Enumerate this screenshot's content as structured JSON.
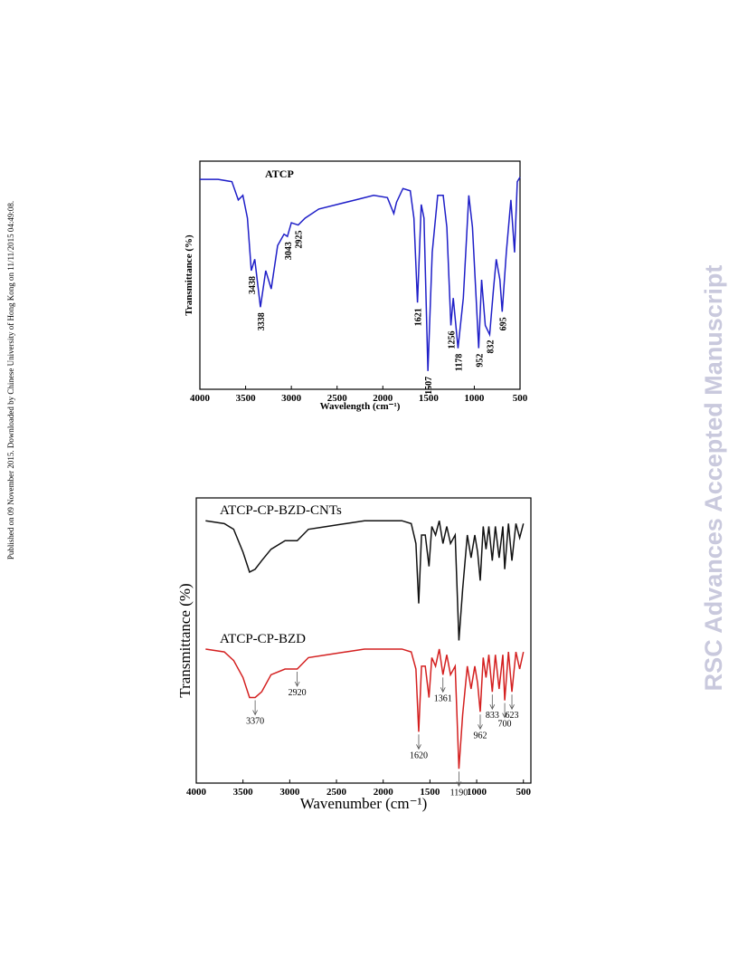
{
  "side_note": "Published on 09 November 2015. Downloaded by Chinese University of Hong Kong on 11/11/2015 04:49:08.",
  "watermark": "RSC Advances Accepted Manuscript",
  "chart_data": [
    {
      "type": "line",
      "title": "ATCP",
      "xlabel": "Wavelength (cm⁻¹)",
      "ylabel": "Transmittance (%)",
      "xlim": [
        4000,
        500
      ],
      "xticks": [
        4000,
        3500,
        3000,
        2500,
        2000,
        1500,
        1000,
        500
      ],
      "ylim": [
        0,
        100
      ],
      "x": [
        4000,
        3800,
        3650,
        3580,
        3530,
        3480,
        3438,
        3400,
        3338,
        3280,
        3220,
        3150,
        3080,
        3043,
        3000,
        2925,
        2850,
        2700,
        2500,
        2300,
        2100,
        1950,
        1880,
        1850,
        1780,
        1700,
        1660,
        1621,
        1580,
        1550,
        1507,
        1460,
        1400,
        1340,
        1300,
        1256,
        1230,
        1178,
        1120,
        1060,
        1020,
        980,
        952,
        920,
        880,
        832,
        790,
        760,
        720,
        695,
        650,
        600,
        560,
        530,
        500
      ],
      "series": [
        {
          "name": "ATCP",
          "color": "#1f1fc8",
          "values": [
            92,
            92,
            91,
            83,
            85,
            75,
            52,
            57,
            36,
            52,
            44,
            63,
            68,
            67,
            73,
            72,
            75,
            79,
            81,
            83,
            85,
            84,
            77,
            82,
            88,
            87,
            75,
            38,
            81,
            75,
            8,
            60,
            85,
            85,
            71,
            28,
            40,
            18,
            40,
            85,
            71,
            40,
            18,
            48,
            28,
            24,
            44,
            57,
            48,
            34,
            60,
            83,
            60,
            91,
            93
          ]
        }
      ],
      "annotations": [
        3438,
        3338,
        3043,
        2925,
        1621,
        1507,
        1256,
        1178,
        952,
        832,
        695
      ]
    },
    {
      "type": "line",
      "xlabel": "Wavenumber (cm⁻¹)",
      "ylabel": "Transmittance (%)",
      "xlim": [
        4000,
        420
      ],
      "xticks": [
        4000,
        3500,
        3000,
        2500,
        2000,
        1500,
        1000,
        500
      ],
      "ylim": [
        0,
        100
      ],
      "x": [
        3900,
        3700,
        3600,
        3500,
        3430,
        3370,
        3300,
        3200,
        3050,
        2920,
        2800,
        2600,
        2400,
        2200,
        2000,
        1800,
        1700,
        1650,
        1620,
        1590,
        1550,
        1510,
        1480,
        1440,
        1400,
        1361,
        1320,
        1280,
        1230,
        1190,
        1150,
        1100,
        1060,
        1020,
        990,
        962,
        930,
        900,
        870,
        833,
        800,
        760,
        720,
        700,
        660,
        623,
        580,
        540,
        500
      ],
      "series": [
        {
          "name": "ATCP-CP-BZD-CNTs",
          "color": "#111111",
          "values": [
            92,
            91,
            89,
            81,
            74,
            75,
            78,
            82,
            85,
            85,
            89,
            90,
            91,
            92,
            92,
            92,
            91,
            84,
            63,
            87,
            87,
            76,
            90,
            87,
            92,
            84,
            90,
            84,
            87,
            50,
            68,
            87,
            79,
            87,
            81,
            71,
            90,
            82,
            90,
            78,
            90,
            79,
            90,
            75,
            91,
            78,
            91,
            86,
            91
          ]
        },
        {
          "name": "ATCP-CP-BZD",
          "color": "#d42020",
          "values": [
            47,
            46,
            43,
            37,
            30,
            30,
            32,
            38,
            40,
            40,
            44,
            45,
            46,
            47,
            47,
            47,
            46,
            40,
            18,
            41,
            41,
            30,
            44,
            41,
            47,
            38,
            45,
            38,
            41,
            5,
            24,
            41,
            33,
            41,
            35,
            25,
            44,
            37,
            45,
            32,
            45,
            33,
            45,
            29,
            46,
            32,
            46,
            40,
            46
          ]
        }
      ],
      "annotations": [
        3370,
        2920,
        1620,
        1361,
        1190,
        962,
        833,
        700,
        623
      ]
    }
  ]
}
